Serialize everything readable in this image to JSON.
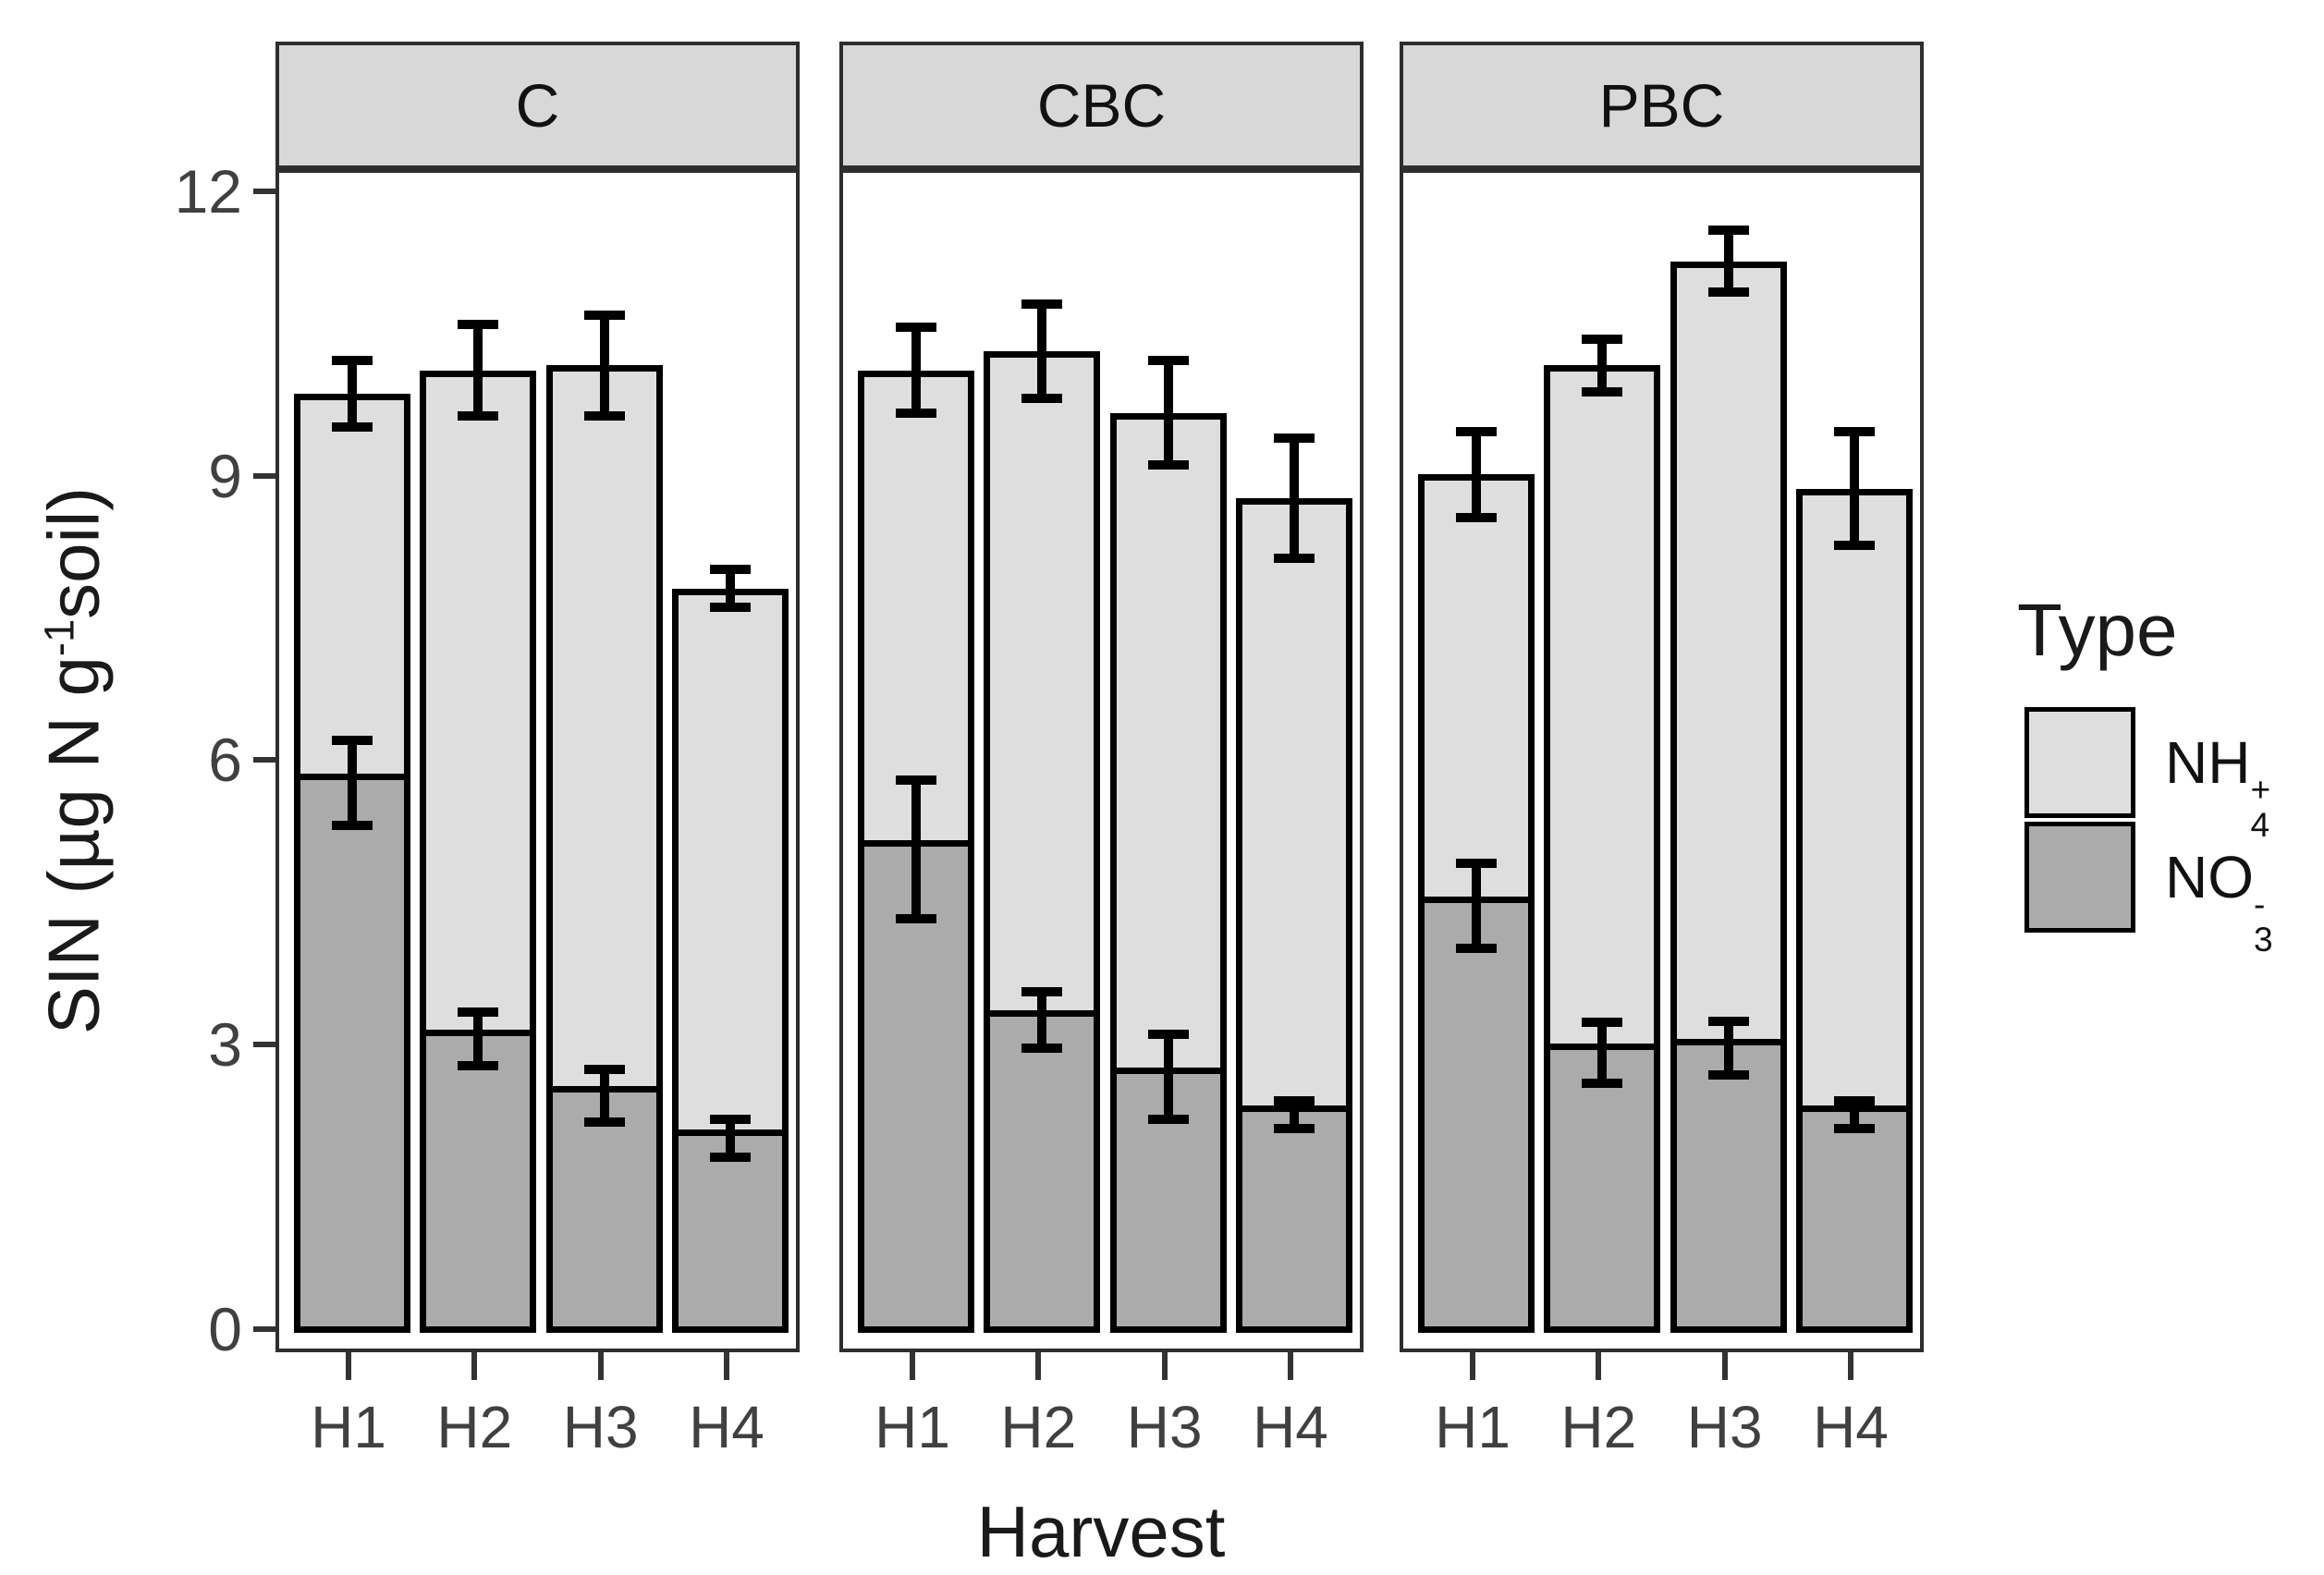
{
  "chart_data": {
    "type": "bar",
    "stacked": true,
    "xlabel": "Harvest",
    "ylabel": "SIN (µg N g-1soil)",
    "ylabel_parts": {
      "prefix": "SIN (µg N g",
      "exponent": "-1",
      "suffix": "soil)"
    },
    "ylim": [
      0,
      12.45
    ],
    "yticks": [
      0,
      3,
      6,
      9,
      12
    ],
    "grid": false,
    "legend_position": "right",
    "categories": [
      "H1",
      "H2",
      "H3",
      "H4"
    ],
    "facets": [
      {
        "label": "C",
        "bars": [
          {
            "category": "H1",
            "NO3": 5.8,
            "NH4": 4.1,
            "total": 9.9,
            "total_err": 0.35,
            "NO3_err": 0.45
          },
          {
            "category": "H2",
            "NO3": 3.1,
            "NH4": 7.05,
            "total": 10.15,
            "total_err": 0.48,
            "NO3_err": 0.28
          },
          {
            "category": "H3",
            "NO3": 2.5,
            "NH4": 7.7,
            "total": 10.2,
            "total_err": 0.53,
            "NO3_err": 0.28
          },
          {
            "category": "H4",
            "NO3": 2.05,
            "NH4": 5.8,
            "total": 7.85,
            "total_err": 0.2,
            "NO3_err": 0.2
          }
        ]
      },
      {
        "label": "CBC",
        "bars": [
          {
            "category": "H1",
            "NO3": 5.1,
            "NH4": 5.05,
            "total": 10.15,
            "total_err": 0.45,
            "NO3_err": 0.73
          },
          {
            "category": "H2",
            "NO3": 3.3,
            "NH4": 7.05,
            "total": 10.35,
            "total_err": 0.5,
            "NO3_err": 0.3
          },
          {
            "category": "H3",
            "NO3": 2.7,
            "NH4": 7.0,
            "total": 9.7,
            "total_err": 0.55,
            "NO3_err": 0.45
          },
          {
            "category": "H4",
            "NO3": 2.3,
            "NH4": 6.5,
            "total": 8.8,
            "total_err": 0.63,
            "NO3_err": 0.15
          }
        ]
      },
      {
        "label": "PBC",
        "bars": [
          {
            "category": "H1",
            "NO3": 4.5,
            "NH4": 4.55,
            "total": 9.05,
            "total_err": 0.45,
            "NO3_err": 0.45
          },
          {
            "category": "H2",
            "NO3": 2.95,
            "NH4": 7.25,
            "total": 10.2,
            "total_err": 0.28,
            "NO3_err": 0.32
          },
          {
            "category": "H3",
            "NO3": 3.0,
            "NH4": 8.3,
            "total": 11.3,
            "total_err": 0.33,
            "NO3_err": 0.28
          },
          {
            "category": "H4",
            "NO3": 2.3,
            "NH4": 6.6,
            "total": 8.9,
            "total_err": 0.6,
            "NO3_err": 0.15
          }
        ]
      }
    ],
    "legend": {
      "title": "Type",
      "entries": [
        {
          "base": "NH",
          "sub": "4",
          "sup": "+",
          "color": "#DEDEDE"
        },
        {
          "base": "NO",
          "sub": "3",
          "sup": "-",
          "color": "#ABABAB"
        }
      ]
    }
  },
  "colors": {
    "nh4_fill": "#DEDEDE",
    "no3_fill": "#ABABAB",
    "strip_fill": "#D8D8D8",
    "bar_outline": "#000000",
    "panel_border": "#2E2E2E",
    "axis_text": "#404040",
    "title_text": "#1A1A1A",
    "error_bar": "#000000",
    "background": "#FFFFFF"
  }
}
